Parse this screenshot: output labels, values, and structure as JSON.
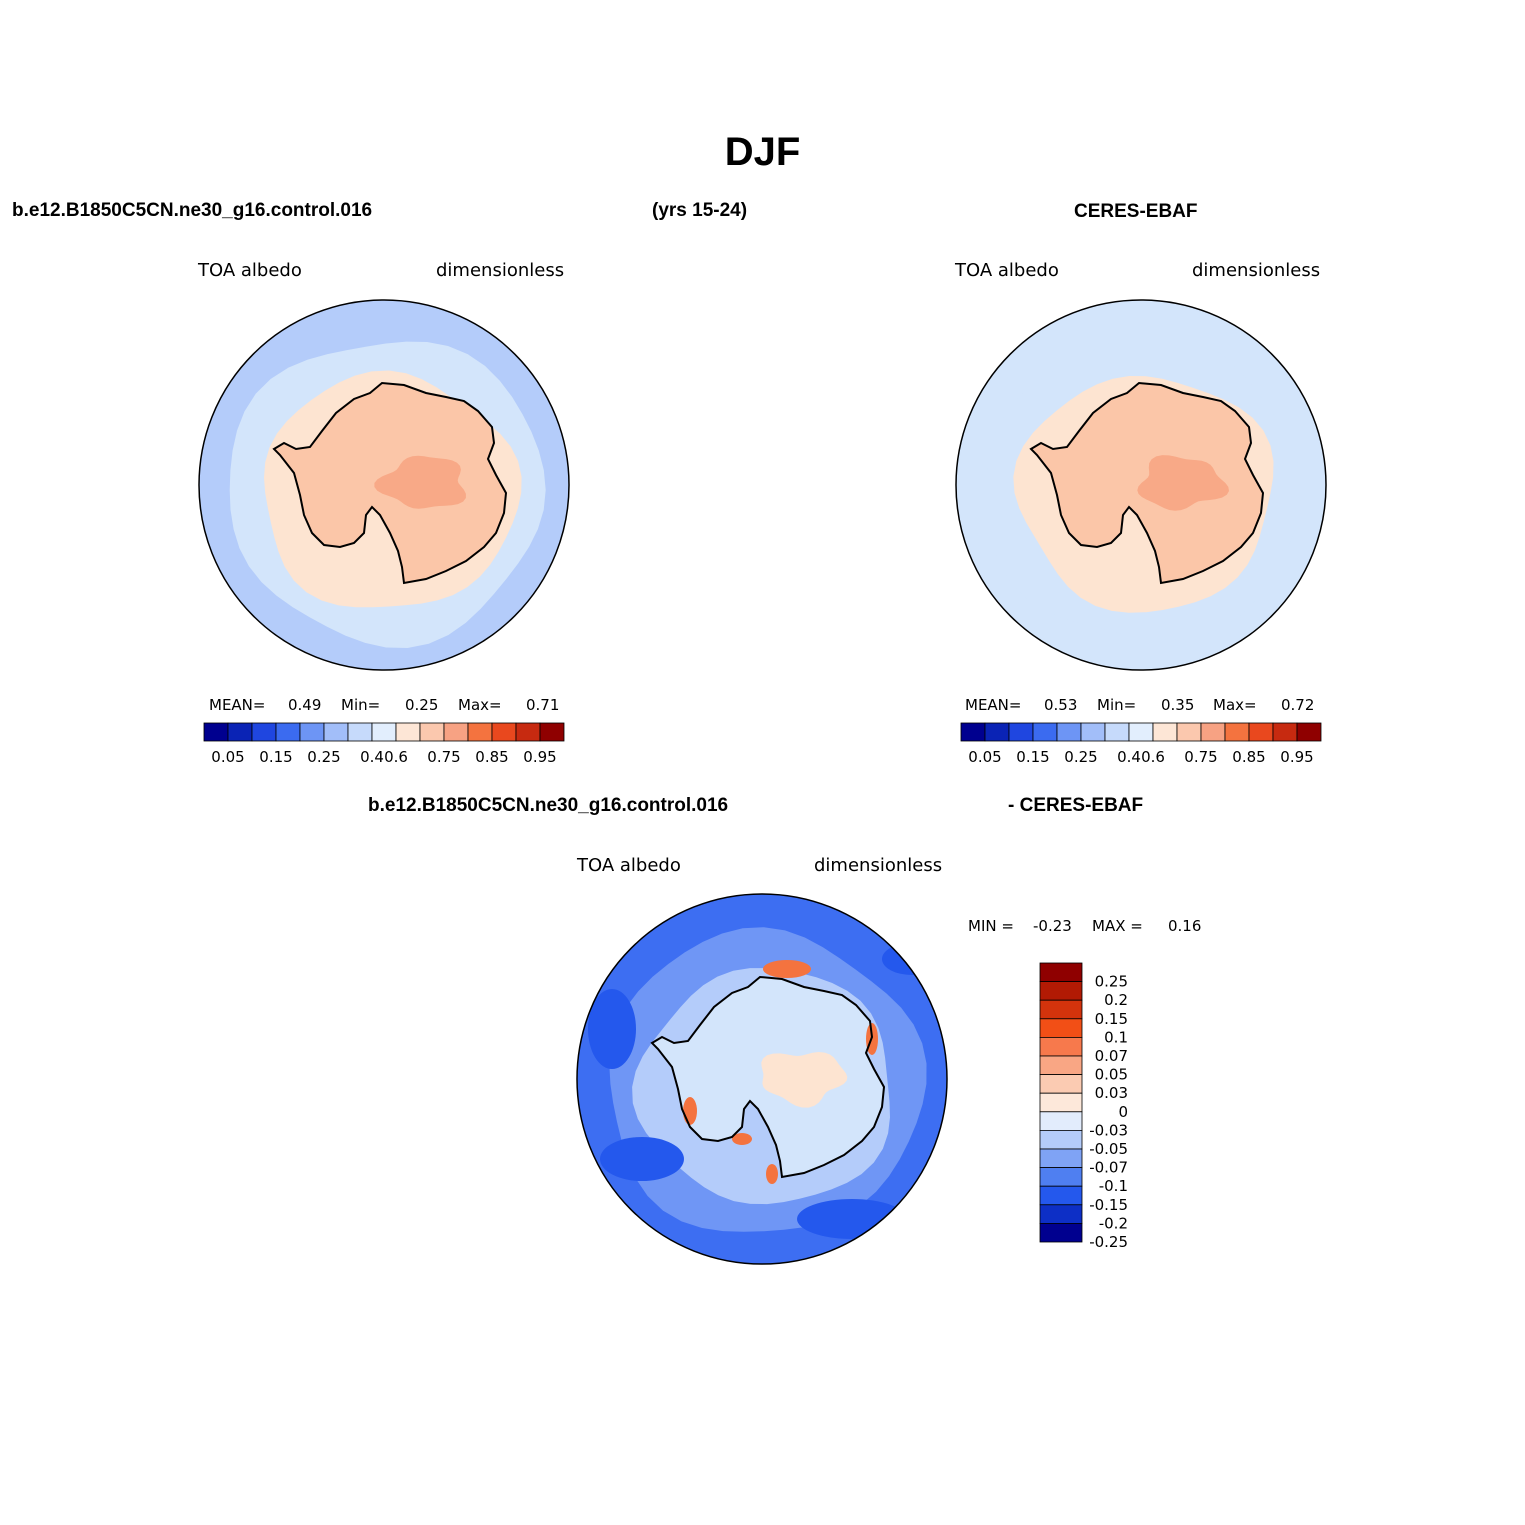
{
  "title": "DJF",
  "headers": {
    "case_name": "b.e12.B1850C5CN.ne30_g16.control.016",
    "years": "(yrs 15-24)",
    "obs_name": "CERES-EBAF",
    "diff_case": "b.e12.B1850C5CN.ne30_g16.control.016",
    "diff_obs": "- CERES-EBAF"
  },
  "panels": [
    {
      "variable": "TOA albedo",
      "units": "dimensionless",
      "stats": {
        "mean_label": "MEAN=",
        "mean": "0.49",
        "min_label": "Min=",
        "min": "0.25",
        "max_label": "Max=",
        "max": "0.71"
      },
      "colors": {
        "ocean": "#b4ccfa",
        "ring": "#d3e5fb",
        "ice": "#fde4d1",
        "land": "#fbc6a8",
        "hi": "#f8a987"
      }
    },
    {
      "variable": "TOA albedo",
      "units": "dimensionless",
      "stats": {
        "mean_label": "MEAN=",
        "mean": "0.53",
        "min_label": "Min=",
        "min": "0.35",
        "max_label": "Max=",
        "max": "0.72"
      },
      "colors": {
        "ocean": "#d3e5fb",
        "ring": "#d3e5fb",
        "ice": "#fde4d1",
        "land": "#fbc6a8",
        "hi": "#f8a987"
      }
    },
    {
      "variable": "TOA albedo",
      "units": "dimensionless",
      "stats_line": {
        "min_label": "MIN =",
        "min": "-0.23",
        "max_label": "MAX =",
        "max": "0.16"
      },
      "colors": {
        "ocean": "#3d6ef2",
        "ring": "#6f96f5",
        "ice": "#b4ccfa",
        "land": "#d3e5fb",
        "hi": "#fde4d1"
      }
    }
  ],
  "colorbar_abs": {
    "colors": [
      "#00008f",
      "#0a23b5",
      "#1f46e0",
      "#3b6bf0",
      "#6d95f5",
      "#a2bef9",
      "#c6dafb",
      "#e2eefd",
      "#fde6d6",
      "#fbc8ae",
      "#f7a283",
      "#f4733f",
      "#e9481e",
      "#c72a10",
      "#8f0000"
    ],
    "ticks": [
      "0.05",
      "0.15",
      "0.25",
      "0.4",
      "0.6",
      "0.75",
      "0.85",
      "0.95"
    ]
  },
  "colorbar_diff": {
    "colors": [
      "#8f0000",
      "#b21a04",
      "#d3330c",
      "#f24f16",
      "#f7794c",
      "#f9a684",
      "#fbcbb2",
      "#fde8da",
      "#e2ecfc",
      "#b4ccfa",
      "#7fa3f5",
      "#4f7ff1",
      "#2458ed",
      "#0d2fc6",
      "#00008f"
    ],
    "ticks": [
      "0.25",
      "0.2",
      "0.15",
      "0.1",
      "0.07",
      "0.05",
      "0.03",
      "0",
      "-0.03",
      "-0.05",
      "-0.07",
      "-0.1",
      "-0.15",
      "-0.2",
      "-0.25"
    ]
  }
}
